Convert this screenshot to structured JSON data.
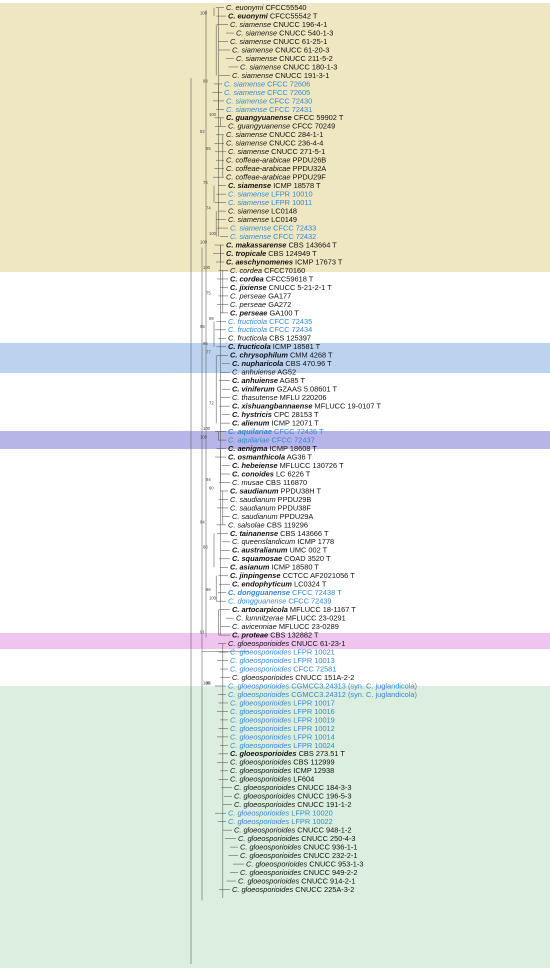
{
  "colors": {
    "band_yellow": "#efe7c2",
    "band_blue": "#bcd3ef",
    "band_purple": "#b7b4e8",
    "band_pink": "#efc4ef",
    "band_green": "#dcefdf",
    "blue_text": "#2f88d6",
    "branch": "#555555"
  },
  "tree": {
    "taxa": [
      {
        "name": "C. euonymi",
        "code": "CFCC55540"
      },
      {
        "name": "C. euonymi",
        "code": "CFCC55542 T",
        "bold": true
      },
      {
        "name": "C. siamense",
        "code": "CNUCC 196-4-1"
      },
      {
        "name": "C. siamense",
        "code": "CNUCC 540-1-3"
      },
      {
        "name": "C. siamense",
        "code": "CNUCC 61-25-1"
      },
      {
        "name": "C. siamense",
        "code": "CNUCC 61-20-3"
      },
      {
        "name": "C. siamense",
        "code": "CNUCC 211-5-2"
      },
      {
        "name": "C. siamense",
        "code": "CNUCC 180-1-3"
      },
      {
        "name": "C. siamense",
        "code": "CNUCC 191-3-1"
      },
      {
        "name": "C. siamense",
        "code": "CFCC 72606",
        "blue": true
      },
      {
        "name": "C. siamense",
        "code": "CFCC 72605",
        "blue": true
      },
      {
        "name": "C. siamense",
        "code": "CFCC 72430",
        "blue": true
      },
      {
        "name": "C. siamense",
        "code": "CFCC 72431",
        "blue": true
      },
      {
        "name": "C. guangyuanense",
        "code": "CFCC 59902 T",
        "bold": true
      },
      {
        "name": "C. guangyuanense",
        "code": "CFCC 70249"
      },
      {
        "name": "C. siamense",
        "code": "CNUCC 284-1-1"
      },
      {
        "name": "C. siamense",
        "code": "CNUCC 236-4-4"
      },
      {
        "name": "C. siamense",
        "code": "CNUCC 271-5-1"
      },
      {
        "name": "C. coffeae-arabicae",
        "code": "PPDU26B"
      },
      {
        "name": "C. coffeae-arabicae",
        "code": "PPDU32A"
      },
      {
        "name": "C. coffeae-arabicae",
        "code": "PPDU29F"
      },
      {
        "name": "C. siamense",
        "code": "ICMP 18578 T",
        "bold": true
      },
      {
        "name": "C. siamense",
        "code": "LFPR 10010",
        "blue": true
      },
      {
        "name": "C. siamense",
        "code": "LFPR 10011",
        "blue": true
      },
      {
        "name": "C. siamense",
        "code": "LC0148"
      },
      {
        "name": "C. siamense",
        "code": "LC0149"
      },
      {
        "name": "C. siamense",
        "code": "CFCC 72433",
        "blue": true
      },
      {
        "name": "C. siamense",
        "code": "CFCC 72432",
        "blue": true
      },
      {
        "name": "C. makassarense",
        "code": "CBS 143664 T",
        "bold": true
      },
      {
        "name": "C. tropicale",
        "code": "CBS 124949 T",
        "bold": true
      },
      {
        "name": "C. aeschynomenes",
        "code": "ICMP 17673 T",
        "bold": true
      },
      {
        "name": "C. cordea",
        "code": "CFCC70160"
      },
      {
        "name": "C. cordea",
        "code": "CFCC59618 T",
        "bold": true
      },
      {
        "name": "C. jixiense",
        "code": "CNUCC 5-21-2-1 T",
        "bold": true
      },
      {
        "name": "C. perseae",
        "code": "GA177"
      },
      {
        "name": "C. perseae",
        "code": "GA272"
      },
      {
        "name": "C. perseae",
        "code": "GA100 T",
        "bold": true
      },
      {
        "name": "C. fructicola",
        "code": "CFCC 72435",
        "blue": true
      },
      {
        "name": "C. fructicola",
        "code": "CFCC 72434",
        "blue": true
      },
      {
        "name": "C. fructicola",
        "code": "CBS 125397"
      },
      {
        "name": "C. fructicola",
        "code": "ICMP 18581 T",
        "bold": true
      },
      {
        "name": "C. chrysophilum",
        "code": "CMM 4268 T",
        "bold": true
      },
      {
        "name": "C. nupharicola",
        "code": "CBS 470.96 T",
        "bold": true
      },
      {
        "name": "C. anhuiense",
        "code": "AG52"
      },
      {
        "name": "C. anhuiense",
        "code": "AG85 T",
        "bold": true
      },
      {
        "name": "C. viniferum",
        "code": "GZAAS 5.08601 T",
        "bold": true
      },
      {
        "name": "C. thasutense",
        "code": "MFLU 220206"
      },
      {
        "name": "C. xishuangbannaense",
        "code": "MFLUCC 19-0107 T",
        "bold": true
      },
      {
        "name": "C. hystricis",
        "code": "CPC 28153 T",
        "bold": true
      },
      {
        "name": "C. alienum",
        "code": "ICMP 12071 T",
        "bold": true
      },
      {
        "name": "C. aquilariae",
        "code": "CFCC 72436 T",
        "blue": true,
        "bold": true
      },
      {
        "name": "C. aquilariae",
        "code": "CFCC 72437",
        "blue": true
      },
      {
        "name": "C. aenigma",
        "code": "ICMP 18608 T",
        "bold": true
      },
      {
        "name": "C. osmanthicola",
        "code": "AG36 T",
        "bold": true
      },
      {
        "name": "C. hebeiense",
        "code": "MFLUCC 130726 T",
        "bold": true
      },
      {
        "name": "C. conoides",
        "code": "LC 6226 T",
        "bold": true
      },
      {
        "name": "C. musae",
        "code": "CBS 116870"
      },
      {
        "name": "C. saudianum",
        "code": "PPDU38H T",
        "bold": true
      },
      {
        "name": "C. saudianum",
        "code": "PPDU29B"
      },
      {
        "name": "C. saudianum",
        "code": "PPDU38F"
      },
      {
        "name": "C. saudianum",
        "code": "PPDU29A"
      },
      {
        "name": "C. salsolae",
        "code": "CBS 119296"
      },
      {
        "name": "C. tainanense",
        "code": "CBS 143666 T",
        "bold": true
      },
      {
        "name": "C. queenslandicum",
        "code": "ICMP 1778"
      },
      {
        "name": "C. australianum",
        "code": "UMC 002 T",
        "bold": true
      },
      {
        "name": "C. squamosae",
        "code": "COAD 3520 T",
        "bold": true
      },
      {
        "name": "C. asianum",
        "code": "ICMP 18580 T",
        "bold": true
      },
      {
        "name": "C. jinpingense",
        "code": "CCTCC AF2021056 T",
        "bold": true
      },
      {
        "name": "C. endophyticum",
        "code": "LC0324 T",
        "bold": true
      },
      {
        "name": "C. dongguanense",
        "code": "CFCC 72438 T",
        "blue": true,
        "bold": true
      },
      {
        "name": "C. dongguanense",
        "code": "CFCC 72439",
        "blue": true
      },
      {
        "name": "C. artocarpicola",
        "code": "MFLUCC 18-1167 T",
        "bold": true
      },
      {
        "name": "C. lumnitzerae",
        "code": "MFLUCC 23-0291"
      },
      {
        "name": "C. avicenniae",
        "code": "MFLUCC 23-0289"
      },
      {
        "name": "C. proteae",
        "code": "CBS 132882 T",
        "bold": true
      },
      {
        "name": "C. gloeosporioides",
        "code": "CNUCC 61-23-1"
      },
      {
        "name": "C. gloeosporioides",
        "code": "LFPR 10021",
        "blue": true
      },
      {
        "name": "C. gloeosporioides",
        "code": "LFPR 10013",
        "blue": true
      },
      {
        "name": "C. gloeosporioides",
        "code": "CFCC 72581",
        "blue": true
      },
      {
        "name": "C. gloeosporioides",
        "code": "CNUCC 151A-2-2"
      },
      {
        "name": "C. gloeosporioides",
        "code": "CGMCC3.24313 (syn. C. juglandicola)",
        "blue": true
      },
      {
        "name": "C. gloeosporioides",
        "code": "CGMCC3.24312 (syn. C. juglandicola)",
        "blue": true
      },
      {
        "name": "C. gloeosporioides",
        "code": "LFPR 10017",
        "blue": true
      },
      {
        "name": "C. gloeosporioides",
        "code": "LFPR 10016",
        "blue": true
      },
      {
        "name": "C. gloeosporioides",
        "code": "LFPR 10019",
        "blue": true
      },
      {
        "name": "C. gloeosporioides",
        "code": "LFPR 10012",
        "blue": true
      },
      {
        "name": "C. gloeosporioides",
        "code": "LFPR 10014",
        "blue": true
      },
      {
        "name": "C. gloeosporioides",
        "code": "LFPR 10024",
        "blue": true
      },
      {
        "name": "C. gloeosporioides",
        "code": "CBS 273.51 T",
        "bold": true
      },
      {
        "name": "C. gloeosporioides",
        "code": "CBS 112999"
      },
      {
        "name": "C. gloeosporioides",
        "code": "ICMP 12938"
      },
      {
        "name": "C. gloeosporioides",
        "code": "LF604"
      },
      {
        "name": "C. gloeosporioides",
        "code": "CNUCC 184-3-3"
      },
      {
        "name": "C. gloeosporioides",
        "code": "CNUCC 196-5-3"
      },
      {
        "name": "C. gloeosporioides",
        "code": "CNUCC 191-1-2"
      },
      {
        "name": "C. gloeosporioides",
        "code": "LFPR 10020",
        "blue": true
      },
      {
        "name": "C. gloeosporioides",
        "code": "LFPR 10022",
        "blue": true
      },
      {
        "name": "C. gloeosporioides",
        "code": "CNUCC 948-1-2"
      },
      {
        "name": "C. gloeosporioides",
        "code": "CNUCC 250-4-3"
      },
      {
        "name": "C. gloeosporioides",
        "code": "CNUCC 936-1-1"
      },
      {
        "name": "C. gloeosporioides",
        "code": "CNUCC 232-2-1"
      },
      {
        "name": "C. gloeosporioides",
        "code": "CNUCC 953-1-3"
      },
      {
        "name": "C. gloeosporioides",
        "code": "CNUCC 949-2-2"
      },
      {
        "name": "C. gloeosporioides",
        "code": "CNUCC 914-2-1"
      },
      {
        "name": "C. gloeosporioides",
        "code": "CNUCC 225A-3-2"
      }
    ],
    "support_values": [
      "100",
      "98",
      "65",
      "100",
      "82",
      "76",
      "74",
      "100",
      "100",
      "100",
      "75",
      "99",
      "95",
      "96",
      "77",
      "72",
      "100",
      "100",
      "94",
      "90",
      "94",
      "86",
      "96",
      "100",
      "91",
      "100",
      "86"
    ]
  }
}
